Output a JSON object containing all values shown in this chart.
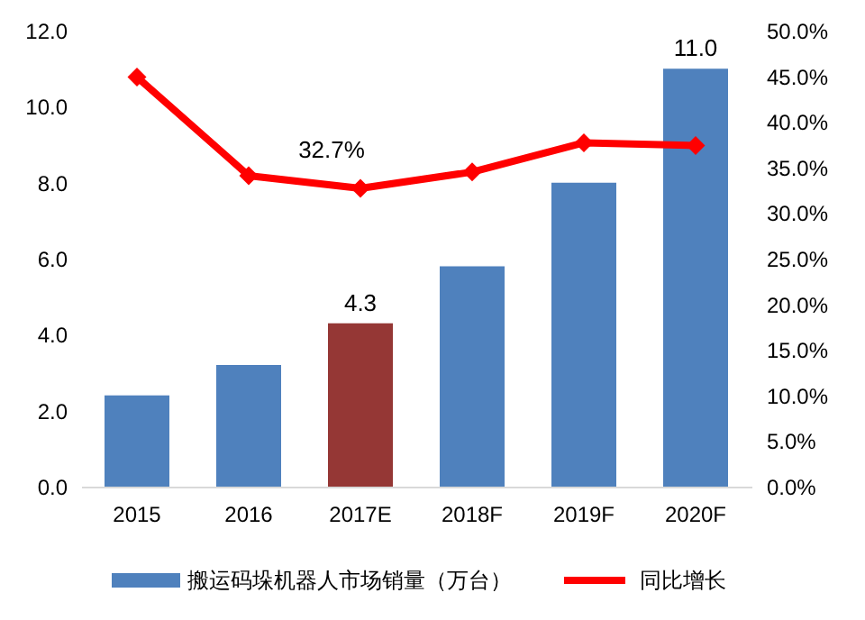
{
  "chart_data": {
    "type": "bar",
    "categories": [
      "2015",
      "2016",
      "2017E",
      "2018F",
      "2019F",
      "2020F"
    ],
    "series": [
      {
        "name": "搬运码垛机器人市场销量（万台）",
        "color": "#4f81bd",
        "colors": [
          "#4f81bd",
          "#4f81bd",
          "#953735",
          "#4f81bd",
          "#4f81bd",
          "#4f81bd"
        ],
        "values": [
          2.4,
          3.2,
          4.3,
          5.8,
          8.0,
          11.0
        ],
        "value_labels": [
          null,
          null,
          "4.3",
          null,
          null,
          "11.0"
        ]
      },
      {
        "name": "同比增长",
        "type": "line",
        "axis": "y2",
        "color": "#ff0000",
        "marker": "diamond",
        "line_style": "solid",
        "values": [
          44.9,
          34.1,
          32.7,
          34.5,
          37.7,
          37.4
        ],
        "value_labels": [
          null,
          null,
          "32.7%",
          null,
          null,
          null
        ]
      }
    ],
    "ylim": [
      0,
      12
    ],
    "yticks": [
      {
        "value": 0,
        "label": "0.0"
      },
      {
        "value": 2,
        "label": "2.0"
      },
      {
        "value": 4,
        "label": "4.0"
      },
      {
        "value": 6,
        "label": "6.0"
      },
      {
        "value": 8,
        "label": "8.0"
      },
      {
        "value": 10,
        "label": "10.0"
      },
      {
        "value": 12,
        "label": "12.0"
      }
    ],
    "y2lim": [
      0,
      50
    ],
    "y2ticks": [
      {
        "value": 0,
        "label": "0.0%"
      },
      {
        "value": 5,
        "label": "5.0%"
      },
      {
        "value": 10,
        "label": "10.0%"
      },
      {
        "value": 15,
        "label": "15.0%"
      },
      {
        "value": 20,
        "label": "20.0%"
      },
      {
        "value": 25,
        "label": "25.0%"
      },
      {
        "value": 30,
        "label": "30.0%"
      },
      {
        "value": 35,
        "label": "35.0%"
      },
      {
        "value": 40,
        "label": "40.0%"
      },
      {
        "value": 45,
        "label": "45.0%"
      },
      {
        "value": 50,
        "label": "50.0%"
      }
    ],
    "legend": "bottom"
  }
}
